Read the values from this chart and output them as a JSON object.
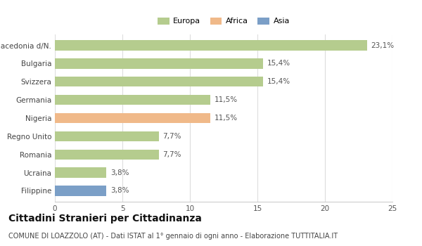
{
  "categories": [
    "Macedonia d/N.",
    "Bulgaria",
    "Svizzera",
    "Germania",
    "Nigeria",
    "Regno Unito",
    "Romania",
    "Ucraina",
    "Filippine"
  ],
  "values": [
    23.1,
    15.4,
    15.4,
    11.5,
    11.5,
    7.7,
    7.7,
    3.8,
    3.8
  ],
  "labels": [
    "23,1%",
    "15,4%",
    "15,4%",
    "11,5%",
    "11,5%",
    "7,7%",
    "7,7%",
    "3,8%",
    "3,8%"
  ],
  "colors": [
    "#b5cc8e",
    "#b5cc8e",
    "#b5cc8e",
    "#b5cc8e",
    "#f0b989",
    "#b5cc8e",
    "#b5cc8e",
    "#b5cc8e",
    "#7b9fc7"
  ],
  "legend": [
    {
      "label": "Europa",
      "color": "#b5cc8e"
    },
    {
      "label": "Africa",
      "color": "#f0b989"
    },
    {
      "label": "Asia",
      "color": "#7b9fc7"
    }
  ],
  "xlim": [
    0,
    25
  ],
  "xticks": [
    0,
    5,
    10,
    15,
    20,
    25
  ],
  "title": "Cittadini Stranieri per Cittadinanza",
  "subtitle": "COMUNE DI LOAZZOLO (AT) - Dati ISTAT al 1° gennaio di ogni anno - Elaborazione TUTTITALIA.IT",
  "background_color": "#ffffff",
  "bar_height": 0.55,
  "label_fontsize": 7.5,
  "tick_fontsize": 7.5,
  "title_fontsize": 10,
  "subtitle_fontsize": 7
}
